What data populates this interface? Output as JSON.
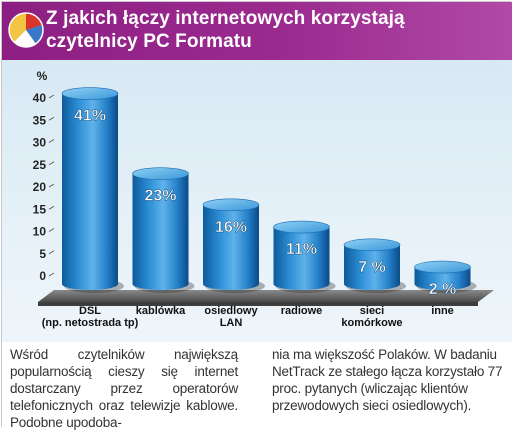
{
  "header": {
    "title_line1": "Z jakich łączy internetowych korzystają",
    "title_line2": "czytelnicy PC Formatu"
  },
  "colors": {
    "header": "#9b2a8f",
    "bar_main": "#1e7fc8",
    "bar_dark": "#0b4f8a",
    "bar_light": "#7cc3f0",
    "floor": "#5a5a5a",
    "background": "#e0edf6"
  },
  "chart_data": {
    "type": "bar",
    "ylabel": "%",
    "ylim": [
      0,
      40
    ],
    "yticks": [
      0,
      5,
      10,
      15,
      20,
      25,
      30,
      35,
      40
    ],
    "grid": false,
    "categories": [
      [
        "DSL",
        "(np. netostrada tp)"
      ],
      [
        "kablówka"
      ],
      [
        "osiedlowy",
        "LAN"
      ],
      [
        "radiowe"
      ],
      [
        "sieci",
        "komórkowe"
      ],
      [
        "inne"
      ]
    ],
    "values": [
      41,
      23,
      16,
      11,
      7,
      2
    ],
    "data_labels": [
      "41%",
      "23%",
      "16%",
      "11%",
      "7 %",
      "2 %"
    ]
  },
  "body_text": {
    "col_left": "Wśród czytelników największą popularnością cieszy się internet dostarczany przez operatorów telefonicznych oraz telewizje kablowe. Podobne upodoba-",
    "col_right": "nia ma większość Polaków. W badaniu NetTrack ze stałego łącza korzystało 77 proc. pytanych (wliczając klientów przewodowych sieci osiedlowych)."
  }
}
